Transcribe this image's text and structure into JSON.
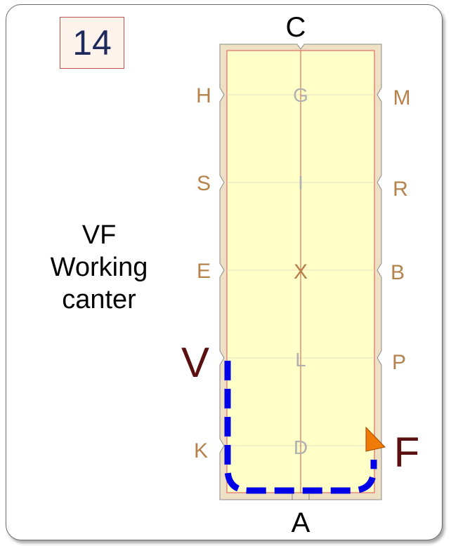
{
  "exercise": {
    "number": "14",
    "caption_lines": [
      "VF",
      "Working",
      "canter"
    ]
  },
  "arena": {
    "top_letter": "C",
    "bottom_letter": "A",
    "left_letters": [
      "H",
      "S",
      "E",
      "K"
    ],
    "right_letters": [
      "M",
      "R",
      "B",
      "P"
    ],
    "centerline_letters": [
      "G",
      "I",
      "X",
      "L",
      "D"
    ]
  },
  "path": {
    "start_letter": "V",
    "end_letter": "F",
    "color": "#0000e6"
  },
  "colors": {
    "arena_fill": "#ffffc8",
    "arena_border": "#eee0c4",
    "arena_inner_line": "#d9534f",
    "side_letter": "#b5824c",
    "center_letter": "#b0b0b0",
    "highlight_letter": "#5a1010",
    "arrow": "#f07b06"
  }
}
